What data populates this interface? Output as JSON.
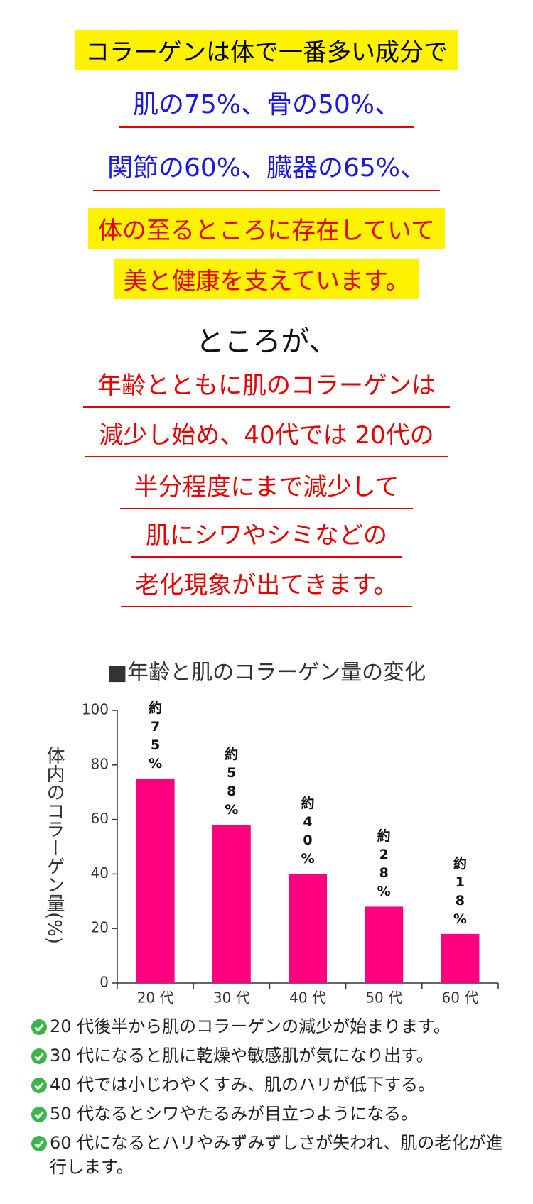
{
  "intro": [
    "コラーゲンは体で一番多い成分で",
    "肌の75%、骨の50%、",
    "関節の60%、臓器の65%、",
    "体の至るところに存在していて",
    "美と健康を支えています。"
  ],
  "turn": "ところが、",
  "decline": [
    "年齢とともに肌のコラーゲンは",
    "減少し始め、40代では 20代の",
    "半分程度にまで減少して",
    "肌にシワやシミなどの",
    "老化現象が出てきます。"
  ],
  "chart_data": {
    "type": "bar",
    "title": "■年齢と肌のコラーゲン量の変化",
    "y_label": "体内のコラーゲン量(%)",
    "categories": [
      "20 代",
      "30 代",
      "40 代",
      "50 代",
      "60 代"
    ],
    "values": [
      75,
      58,
      40,
      28,
      18
    ],
    "value_labels": [
      "約75%",
      "約58%",
      "約40%",
      "約28%",
      "約18%"
    ],
    "color": "#ff0080",
    "ylim": [
      0,
      100
    ],
    "yticks": [
      0,
      20,
      40,
      60,
      80,
      100
    ]
  },
  "notes": [
    "20 代後半から肌のコラーゲンの減少が始まります。",
    "30 代になると肌に乾燥や敏感肌が気になり出す。",
    "40 代では小じわやくすみ、肌のハリが低下する。",
    "50 代なるとシワやたるみが目立つようになる。",
    "60 代になるとハリやみずみずしさが失われ、肌の老化が進行します。"
  ]
}
